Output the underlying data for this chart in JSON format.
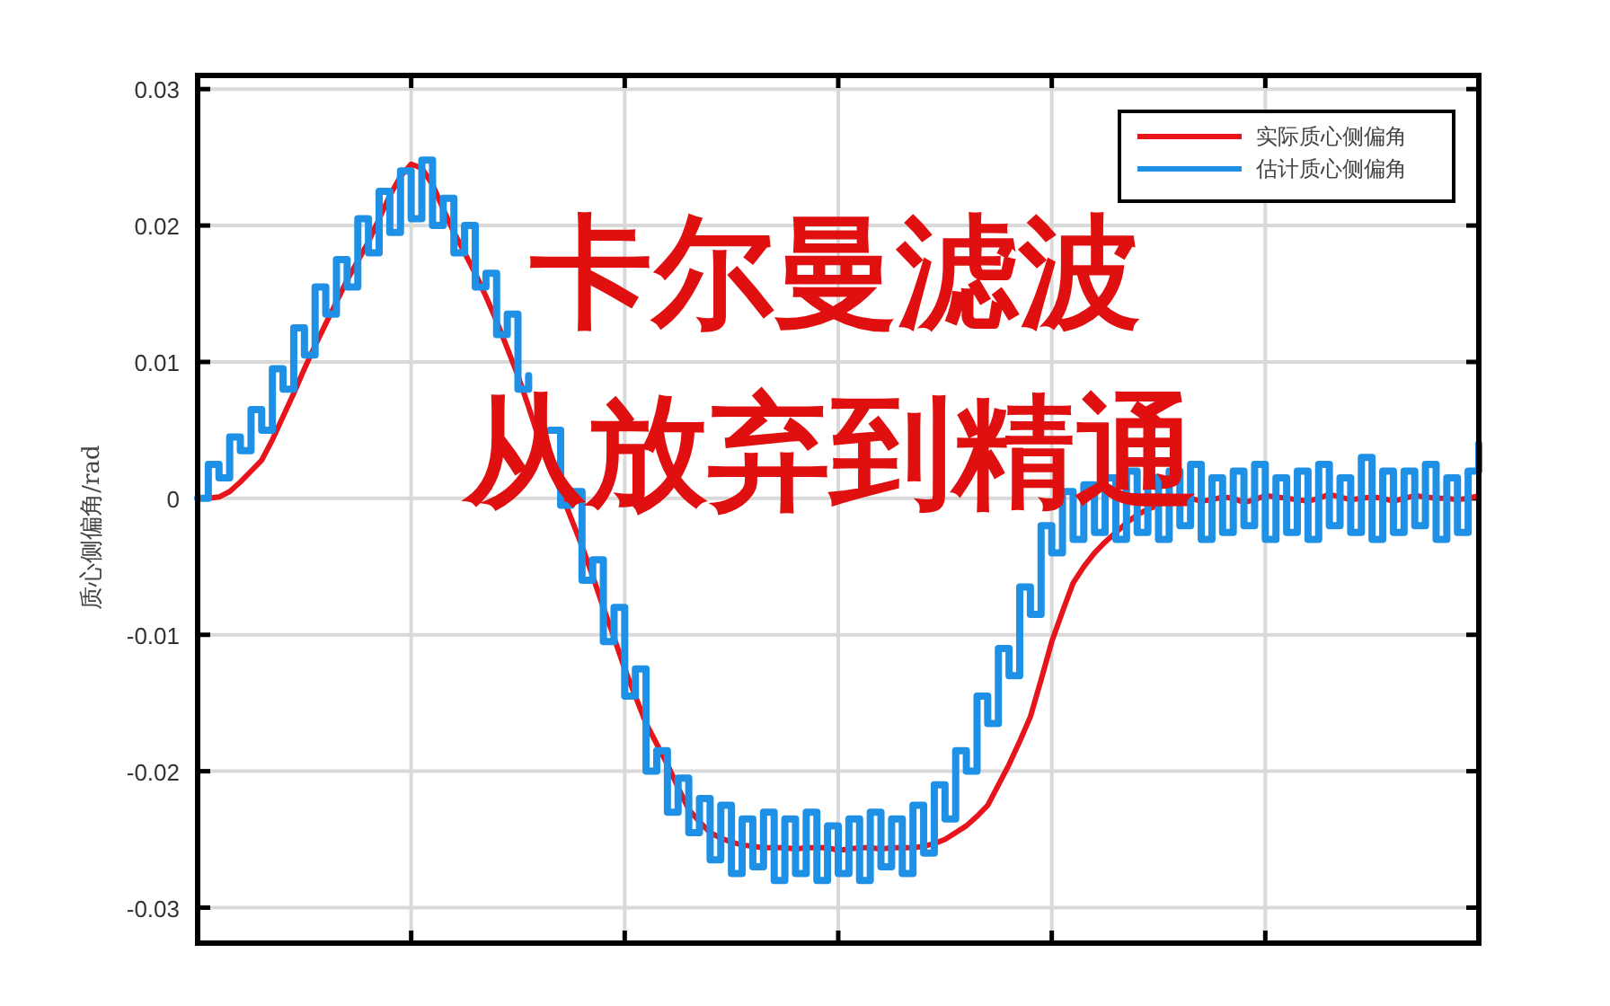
{
  "chart_data": {
    "type": "line",
    "ylabel": "质心侧偏角/rad",
    "annotations": [
      "卡尔曼滤波",
      "从放弃到精通"
    ],
    "categories": [
      null,
      null,
      null,
      null,
      null,
      null,
      null,
      null,
      null,
      null,
      null,
      null,
      null,
      null,
      null,
      null,
      null,
      null,
      null,
      null,
      null,
      null,
      null,
      null,
      null,
      null,
      null,
      null,
      null,
      null,
      null,
      null,
      null,
      null,
      null,
      null,
      null,
      null,
      null,
      null,
      null,
      null,
      null,
      null,
      null,
      null,
      null,
      null,
      null,
      null,
      null,
      null,
      null,
      null,
      null,
      null,
      null,
      null,
      null,
      null,
      null,
      null,
      null,
      null,
      null,
      null,
      null,
      null,
      null,
      null,
      null,
      null,
      null,
      null,
      null,
      null,
      null,
      null,
      null,
      null,
      null,
      null,
      null,
      null,
      null,
      null,
      null,
      null,
      null,
      null,
      null,
      null,
      null,
      null,
      null,
      null,
      null,
      null,
      null,
      null,
      null,
      null,
      null,
      null,
      null,
      null,
      null,
      null,
      null,
      null,
      null,
      null,
      null,
      null,
      null,
      null,
      null,
      null,
      null,
      null,
      null
    ],
    "ylim": [
      -0.0326,
      0.031
    ],
    "yticks": [
      -0.03,
      -0.02,
      -0.01,
      0,
      0.01,
      0.02,
      0.03
    ],
    "grid": true,
    "legend": "top right",
    "series": [
      {
        "name": "实际质心侧偏角",
        "color": "#e8141c",
        "values": [
          0,
          0,
          0.0001,
          0.0005,
          0.0012,
          0.002,
          0.0028,
          0.0043,
          0.006,
          0.0077,
          0.0095,
          0.0112,
          0.0128,
          0.0144,
          0.016,
          0.0174,
          0.0188,
          0.0205,
          0.0222,
          0.0236,
          0.0245,
          0.0242,
          0.023,
          0.0212,
          0.0195,
          0.018,
          0.0165,
          0.0148,
          0.013,
          0.011,
          0.009,
          0.0067,
          0.0043,
          0.0024,
          0.0005,
          -0.0015,
          -0.0035,
          -0.0057,
          -0.008,
          -0.0102,
          -0.0125,
          -0.0145,
          -0.0165,
          -0.018,
          -0.0195,
          -0.0212,
          -0.0228,
          -0.0237,
          -0.0245,
          -0.0249,
          -0.0252,
          -0.0254,
          -0.0255,
          -0.0256,
          -0.0256,
          -0.0256,
          -0.0257,
          -0.0256,
          -0.0256,
          -0.0256,
          -0.0258,
          -0.0257,
          -0.0256,
          -0.0256,
          -0.0257,
          -0.0256,
          -0.0256,
          -0.0256,
          -0.0255,
          -0.0253,
          -0.025,
          -0.0245,
          -0.024,
          -0.0233,
          -0.0225,
          -0.021,
          -0.0195,
          -0.0178,
          -0.016,
          -0.0133,
          -0.0105,
          -0.0083,
          -0.0062,
          -0.005,
          -0.004,
          -0.0032,
          -0.0025,
          -0.0018,
          -0.0012,
          -0.0008,
          -0.0005,
          0,
          0.0002,
          0,
          -0.0002,
          -0.0001,
          0.0001,
          0,
          -0.0003,
          -0.0001,
          0.0002,
          0.0001,
          0,
          -0.0001,
          -0.0002,
          0,
          0.0003,
          0.0001,
          -0.0001,
          0,
          0.0001,
          0,
          -0.0002,
          0,
          0.0002,
          0.0001,
          0,
          0,
          -0.0001,
          0,
          0.0002
        ]
      },
      {
        "name": "估计质心侧偏角",
        "color": "#1e90e6",
        "type": "step",
        "values": [
          0,
          0.0025,
          0.0015,
          0.0045,
          0.0035,
          0.0065,
          0.005,
          0.0095,
          0.008,
          0.0125,
          0.0105,
          0.0155,
          0.0135,
          0.0175,
          0.0155,
          0.0205,
          0.018,
          0.0225,
          0.0195,
          0.024,
          0.0205,
          0.0248,
          0.02,
          0.022,
          0.018,
          0.02,
          0.0155,
          0.0165,
          0.012,
          0.0135,
          0.008,
          0.009,
          null,
          0.005,
          -0.0005,
          0.0005,
          -0.006,
          -0.0045,
          -0.0105,
          -0.008,
          -0.0145,
          -0.0125,
          -0.02,
          -0.0185,
          -0.023,
          -0.0205,
          -0.0245,
          -0.022,
          -0.0265,
          -0.0225,
          -0.0275,
          -0.0235,
          -0.027,
          -0.023,
          -0.028,
          -0.0235,
          -0.0275,
          -0.023,
          -0.028,
          -0.024,
          -0.0275,
          -0.0235,
          -0.028,
          -0.023,
          -0.027,
          -0.0235,
          -0.0275,
          -0.0225,
          -0.026,
          -0.021,
          -0.0235,
          -0.0185,
          -0.02,
          -0.0145,
          -0.0165,
          -0.011,
          -0.013,
          -0.0065,
          -0.0085,
          -0.002,
          -0.004,
          0.0005,
          -0.003,
          0.001,
          -0.0025,
          0.0015,
          -0.003,
          0.002,
          -0.0025,
          0.0015,
          -0.003,
          0.002,
          -0.002,
          0.0025,
          -0.003,
          0.0015,
          -0.0025,
          0.002,
          -0.002,
          0.0025,
          -0.003,
          0.0015,
          -0.0025,
          0.002,
          -0.003,
          0.0025,
          -0.002,
          0.0015,
          -0.0025,
          0.003,
          -0.003,
          0.002,
          -0.0025,
          0.002,
          -0.002,
          0.0025,
          -0.003,
          0.0015,
          -0.0025,
          0.002,
          0.004
        ]
      }
    ]
  }
}
